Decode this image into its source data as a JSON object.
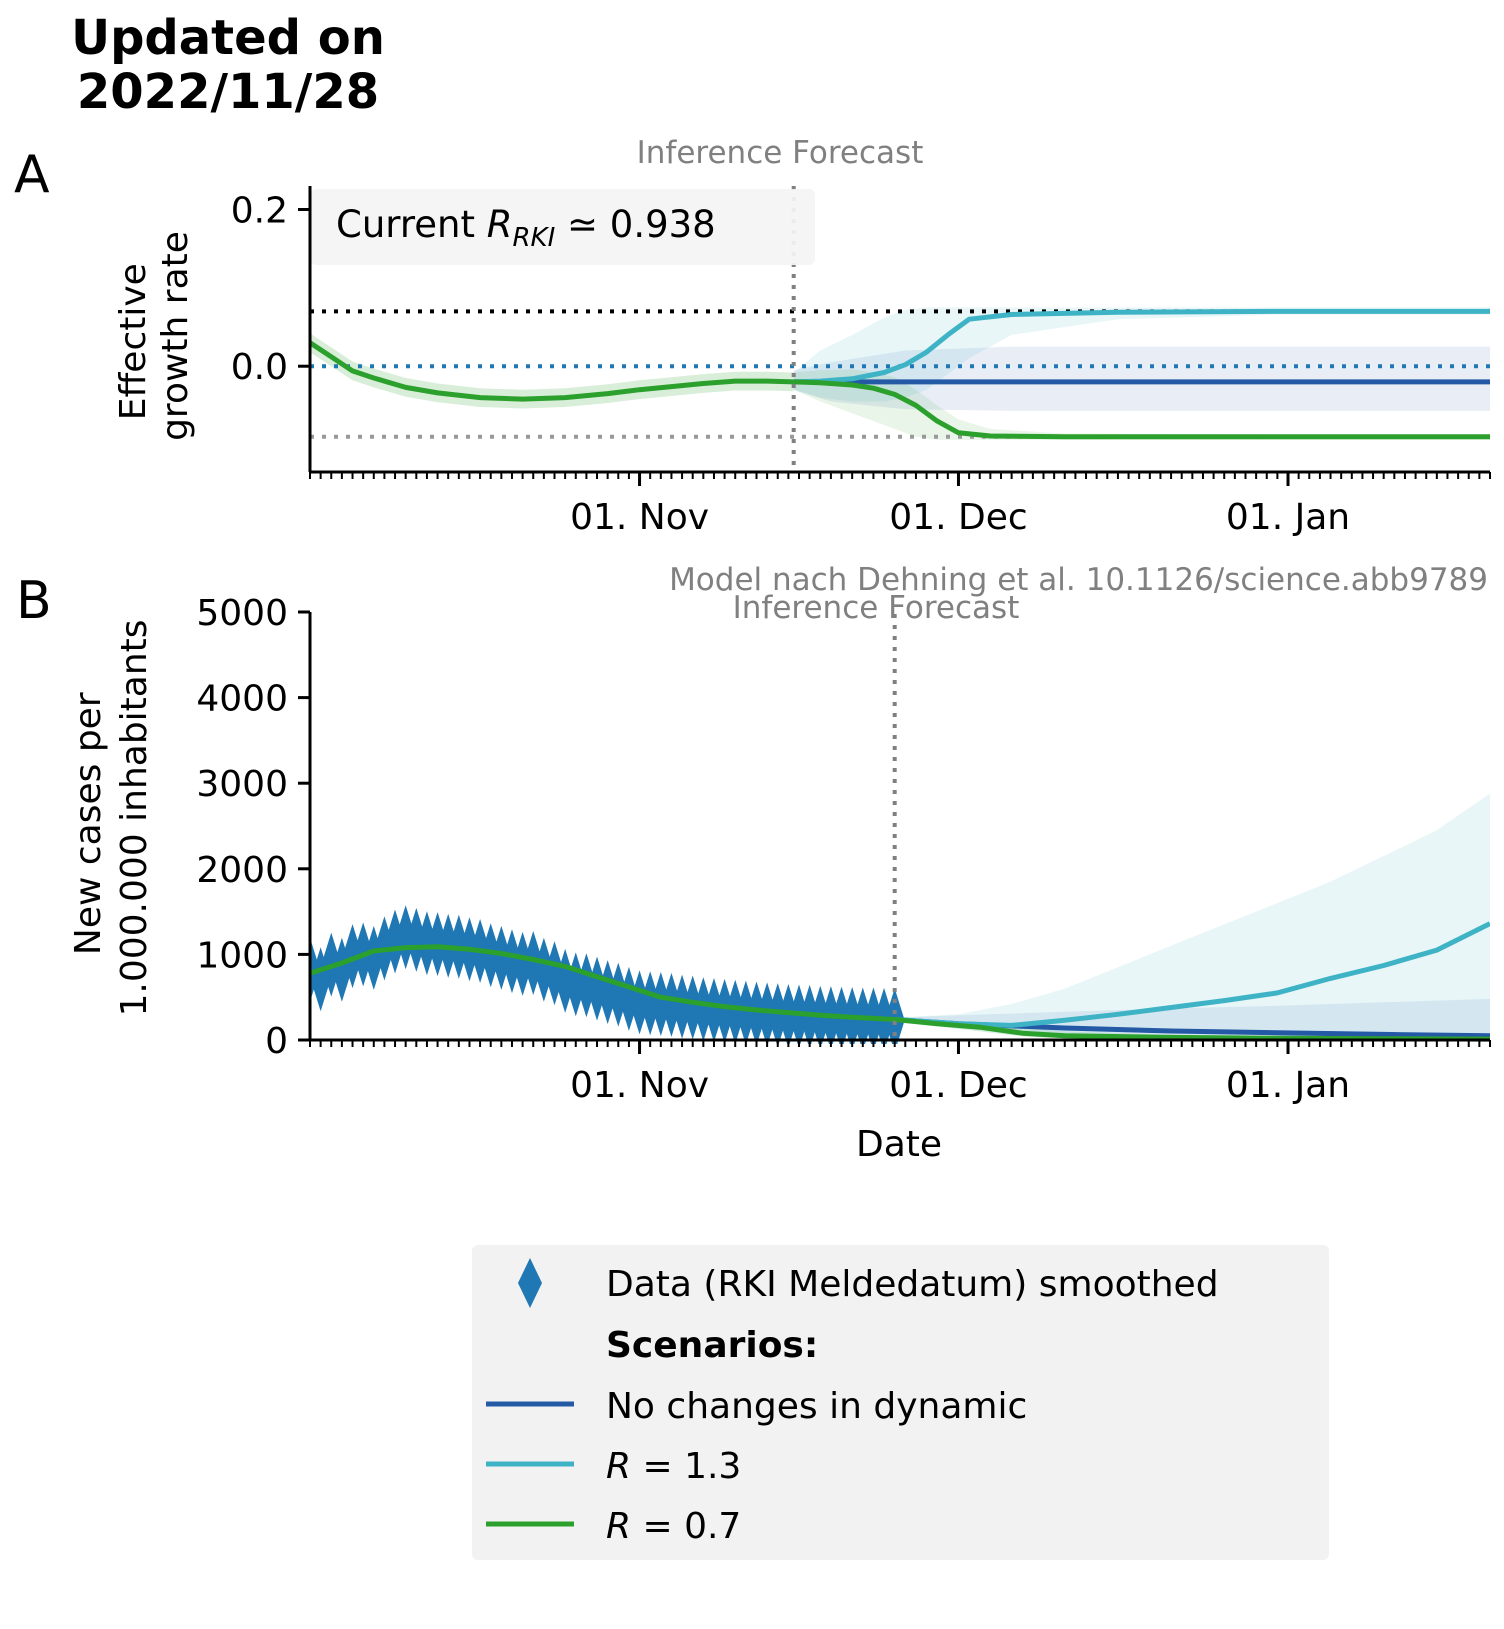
{
  "header": {
    "title_lines": [
      "Updated on",
      "2022/11/28"
    ]
  },
  "colors": {
    "no_change": "#2459a6",
    "r13": "#3fb3c6",
    "r07": "#2ca02c",
    "data": "#1f77b4",
    "ref_black": "#000000",
    "ref_blue": "#1f77b4",
    "ref_grey": "#999999",
    "divider": "#808080",
    "legend_bg": "#f2f2f2"
  },
  "panel_a": {
    "letter": "A",
    "ylabel_lines": [
      "Effective",
      "growth rate"
    ],
    "phase_label": "Inference Forecast",
    "current_text": "Current R_RKI ≃ 0.938",
    "current_prefix": "Current ",
    "current_R": "R",
    "current_sub": "RKI",
    "current_value": " ≃ 0.938",
    "y_ticks": [
      "0.2",
      "0.0"
    ],
    "x_ticks": [
      "01. Nov",
      "01. Dec",
      "01. Jan"
    ]
  },
  "panel_b": {
    "letter": "B",
    "credit": "Model nach Dehning et al. 10.1126/science.abb9789",
    "phase_label": "Inference  Forecast",
    "ylabel_lines": [
      "New cases per",
      "1.000.000 inhabitants"
    ],
    "xlabel": "Date",
    "y_ticks": [
      "5000",
      "4000",
      "3000",
      "2000",
      "1000",
      "0"
    ],
    "x_ticks": [
      "01. Nov",
      "01. Dec",
      "01. Jan"
    ]
  },
  "legend": {
    "data_label": "Data (RKI Meldedatum) smoothed",
    "scenarios_heading": "Scenarios:",
    "no_change_label": "No changes in dynamic",
    "r13_prefix": "R",
    "r13_value": " = 1.3",
    "r07_prefix": "R",
    "r07_value": " = 0.7"
  },
  "chart_data": [
    {
      "type": "line",
      "panel": "A",
      "x_unit": "days relative to 01. Nov 2022",
      "xlim": [
        -31,
        80
      ],
      "ylim": [
        -0.135,
        0.23
      ],
      "x_tick_values": [
        0,
        30,
        61
      ],
      "y_tick_values": [
        0.2,
        0.0
      ],
      "inference_forecast_boundary_x": 14.5,
      "reference_lines": [
        {
          "name": "R = 1.3 level",
          "y": 0.07,
          "style": "dotted black"
        },
        {
          "name": "R = 1 level",
          "y": 0.0,
          "style": "dotted blue"
        },
        {
          "name": "R = 0.7 level",
          "y": -0.09,
          "style": "dotted grey"
        }
      ],
      "inference_curve": {
        "x": [
          -31,
          -29,
          -27,
          -25,
          -22,
          -19,
          -15,
          -11,
          -7,
          -3,
          0,
          3,
          6,
          9,
          12,
          14.5
        ],
        "y": [
          0.03,
          0.012,
          -0.006,
          -0.015,
          -0.027,
          -0.034,
          -0.04,
          -0.042,
          -0.04,
          -0.035,
          -0.03,
          -0.026,
          -0.022,
          -0.019,
          -0.019,
          -0.02
        ],
        "band_half_width": 0.012
      },
      "series": [
        {
          "name": "No changes in dynamic",
          "x": [
            14.5,
            18,
            25,
            35,
            50,
            65,
            80
          ],
          "y": [
            -0.02,
            -0.02,
            -0.02,
            -0.02,
            -0.02,
            -0.02,
            -0.02
          ],
          "band_upper": [
            -0.005,
            0.005,
            0.02,
            0.025,
            0.025,
            0.025,
            0.025
          ],
          "band_lower": [
            -0.03,
            -0.045,
            -0.055,
            -0.057,
            -0.057,
            -0.057,
            -0.057
          ]
        },
        {
          "name": "R = 1.3",
          "x": [
            14.5,
            17,
            20,
            23,
            25,
            27,
            29,
            31,
            35,
            45,
            60,
            80
          ],
          "y": [
            -0.02,
            -0.019,
            -0.016,
            -0.008,
            0.002,
            0.018,
            0.04,
            0.06,
            0.066,
            0.069,
            0.07,
            0.07
          ],
          "band_upper": [
            -0.008,
            0.02,
            0.04,
            0.062,
            0.072,
            0.075,
            0.075,
            0.075,
            0.075,
            0.075,
            0.075,
            0.075
          ],
          "band_lower": [
            -0.03,
            -0.04,
            -0.045,
            -0.045,
            -0.04,
            -0.03,
            -0.01,
            0.01,
            0.04,
            0.06,
            0.066,
            0.066
          ]
        },
        {
          "name": "R = 0.7",
          "x": [
            14.5,
            17,
            20,
            22,
            24,
            26,
            28,
            30,
            33,
            40,
            60,
            80
          ],
          "y": [
            -0.02,
            -0.021,
            -0.024,
            -0.028,
            -0.036,
            -0.05,
            -0.07,
            -0.085,
            -0.089,
            -0.09,
            -0.09,
            -0.09
          ],
          "band_upper": [
            -0.008,
            -0.005,
            -0.004,
            -0.008,
            -0.014,
            -0.03,
            -0.05,
            -0.068,
            -0.08,
            -0.086,
            -0.087,
            -0.087
          ],
          "band_lower": [
            -0.03,
            -0.045,
            -0.06,
            -0.07,
            -0.08,
            -0.09,
            -0.094,
            -0.094,
            -0.094,
            -0.094,
            -0.094,
            -0.094
          ]
        }
      ]
    },
    {
      "type": "line",
      "panel": "B",
      "x_unit": "days relative to 01. Nov 2022",
      "xlim": [
        -31,
        80
      ],
      "ylim": [
        0,
        5000
      ],
      "x_tick_values": [
        0,
        30,
        61
      ],
      "y_tick_values": [
        5000,
        4000,
        3000,
        2000,
        1000,
        0
      ],
      "inference_forecast_boundary_x": 24,
      "data_points": {
        "name": "Data (RKI Meldedatum) smoothed",
        "x": [
          -31,
          -30,
          -29,
          -28,
          -27,
          -26,
          -25,
          -24,
          -23,
          -22,
          -21,
          -20,
          -19,
          -18,
          -17,
          -16,
          -15,
          -14,
          -13,
          -12,
          -11,
          -10,
          -9,
          -8,
          -7,
          -6,
          -5,
          -4,
          -3,
          -2,
          -1,
          0,
          1,
          2,
          3,
          4,
          5,
          6,
          7,
          8,
          9,
          10,
          11,
          12,
          13,
          14,
          15,
          16,
          17,
          18,
          19,
          20,
          21,
          22,
          23,
          24
        ],
        "y": [
          820,
          710,
          880,
          820,
          980,
          1000,
          960,
          1070,
          1150,
          1200,
          1170,
          1130,
          1120,
          1100,
          1090,
          1060,
          1040,
          990,
          960,
          920,
          890,
          900,
          820,
          780,
          690,
          650,
          640,
          600,
          560,
          530,
          480,
          440,
          430,
          420,
          410,
          390,
          380,
          360,
          350,
          340,
          330,
          320,
          310,
          300,
          290,
          280,
          275,
          270,
          260,
          255,
          250,
          245,
          240,
          240,
          235,
          230
        ]
      },
      "inference_curve": {
        "x": [
          -31,
          -28,
          -25,
          -22,
          -19,
          -16,
          -13,
          -10,
          -7,
          -4,
          -1,
          2,
          5,
          8,
          11,
          14,
          17,
          20,
          24
        ],
        "y": [
          780,
          900,
          1040,
          1080,
          1090,
          1060,
          1010,
          940,
          860,
          740,
          620,
          500,
          440,
          390,
          350,
          320,
          290,
          265,
          240
        ]
      },
      "series": [
        {
          "name": "No changes in dynamic",
          "x": [
            24,
            30,
            40,
            50,
            60,
            70,
            80
          ],
          "y": [
            240,
            190,
            140,
            105,
            85,
            65,
            50
          ],
          "band_upper": [
            260,
            290,
            330,
            370,
            400,
            440,
            480
          ],
          "band_lower": [
            220,
            150,
            80,
            40,
            20,
            10,
            5
          ]
        },
        {
          "name": "R = 1.3",
          "x": [
            24,
            30,
            35,
            40,
            45,
            50,
            55,
            60,
            65,
            70,
            75,
            80
          ],
          "y": [
            240,
            190,
            170,
            230,
            300,
            380,
            460,
            550,
            720,
            870,
            1050,
            1360
          ],
          "band_upper": [
            260,
            300,
            420,
            600,
            850,
            1100,
            1350,
            1600,
            1850,
            2150,
            2450,
            2880
          ],
          "band_lower": [
            220,
            130,
            60,
            40,
            30,
            30,
            30,
            30,
            30,
            30,
            30,
            30
          ]
        },
        {
          "name": "R = 0.7",
          "x": [
            24,
            28,
            32,
            36,
            40,
            50,
            60,
            70,
            80
          ],
          "y": [
            240,
            190,
            150,
            80,
            50,
            30,
            20,
            15,
            10
          ],
          "band_upper": [
            260,
            230,
            200,
            150,
            100,
            60,
            40,
            30,
            25
          ],
          "band_lower": [
            220,
            160,
            100,
            40,
            15,
            5,
            3,
            2,
            1
          ]
        }
      ]
    }
  ]
}
